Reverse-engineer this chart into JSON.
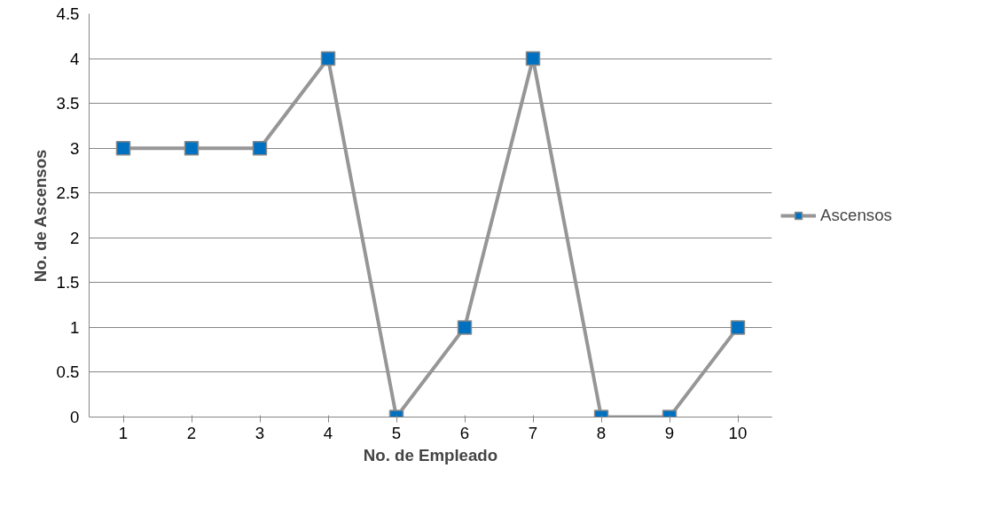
{
  "chart_data": {
    "type": "line",
    "xlabel": "No. de Empleado",
    "ylabel": "No. de Ascensos",
    "categories": [
      "1",
      "2",
      "3",
      "4",
      "5",
      "6",
      "7",
      "8",
      "9",
      "10"
    ],
    "series": [
      {
        "name": "Ascensos",
        "color": "#969696",
        "colors": [
          "#0070c0",
          "#0070c0",
          "#0070c0",
          "#0070c0",
          "#0070c0",
          "#0070c0",
          "#0070c0",
          "#0070c0",
          "#0070c0",
          "#0070c0"
        ],
        "values": [
          3,
          3,
          3,
          4,
          0,
          1,
          4,
          0,
          0,
          1
        ]
      }
    ],
    "ylim": [
      0,
      4.5
    ],
    "yticks": [
      0,
      0.5,
      1,
      1.5,
      2,
      2.5,
      3,
      3.5,
      4,
      4.5
    ],
    "grid": "y",
    "legend": "right",
    "marker": "square",
    "line_style": "solid"
  }
}
